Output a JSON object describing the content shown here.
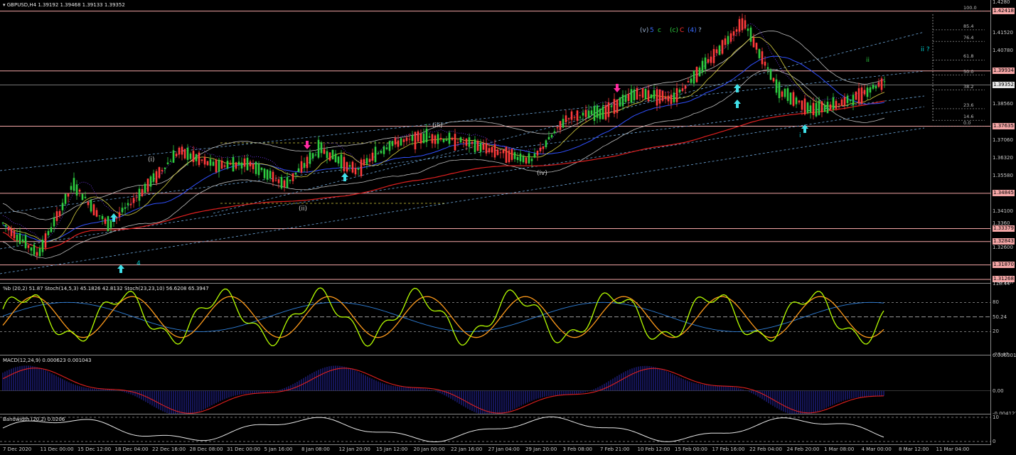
{
  "main_header": "GBPUSD,H4  1.39192 1.39468 1.39133 1.39352",
  "stoch_header": "%b (20,2) 51.87  Stoch(14,5,3) 45.1826 42.8132  Stoch(23,23,10) 56.6208 65.3947",
  "macd_header": "MACD(12,24,9) 0.000623 0.001043",
  "bw_header": "Bandwidth (20,2) 0.0206",
  "price_ticks": [
    "1.4280",
    "1.41520",
    "1.40780",
    "1.3939",
    "1.38560",
    "1.3760",
    "1.37060",
    "1.36320",
    "1.35580",
    "1.3480",
    "1.34100",
    "1.3360",
    "1.32600",
    "1.31860",
    "1.31120"
  ],
  "price_tags": [
    {
      "label": "1.42418",
      "price": 1.42418,
      "kind": "level"
    },
    {
      "label": "1.39934",
      "price": 1.39934,
      "kind": "level"
    },
    {
      "label": "1.39352",
      "price": 1.39352,
      "kind": "current"
    },
    {
      "label": "1.37635",
      "price": 1.37635,
      "kind": "level"
    },
    {
      "label": "1.34845",
      "price": 1.34845,
      "kind": "level"
    },
    {
      "label": "1.33379",
      "price": 1.33379,
      "kind": "level"
    },
    {
      "label": "1.32843",
      "price": 1.32843,
      "kind": "level"
    },
    {
      "label": "1.31870",
      "price": 1.3187,
      "kind": "level"
    },
    {
      "label": "1.31268",
      "price": 1.31268,
      "kind": "level"
    }
  ],
  "stoch_ticks": [
    "118.44",
    "80",
    "50.24",
    "20",
    "-27.47"
  ],
  "macd_ticks": [
    "0.006301",
    "0.00",
    "-0.004121"
  ],
  "bw_ticks": [
    "10",
    "0"
  ],
  "time_labels": [
    "7 Dec 2020",
    "11 Dec 00:00",
    "15 Dec 12:00",
    "18 Dec 04:00",
    "22 Dec 16:00",
    "28 Dec 08:00",
    "31 Dec 00:00",
    "5 Jan 16:00",
    "8 Jan 08:00",
    "12 Jan 20:00",
    "15 Jan 12:00",
    "20 Jan 00:00",
    "22 Jan 16:00",
    "27 Jan 04:00",
    "29 Jan 20:00",
    "3 Feb 08:00",
    "7 Feb 21:00",
    "10 Feb 12:00",
    "15 Feb 00:00",
    "17 Feb 16:00",
    "22 Feb 04:00",
    "24 Feb 20:00",
    "1 Mar 08:00",
    "4 Mar 00:00",
    "8 Mar 12:00",
    "11 Mar 04:00"
  ],
  "fib_levels": [
    {
      "label": "100.0",
      "price": 1.42418
    },
    {
      "label": "85.4",
      "price": 1.4164
    },
    {
      "label": "76.4",
      "price": 1.4116
    },
    {
      "label": "61.8",
      "price": 1.4039
    },
    {
      "label": "50.0",
      "price": 1.3976
    },
    {
      "label": "38.2",
      "price": 1.3914
    },
    {
      "label": "23.6",
      "price": 1.3836
    },
    {
      "label": "14.6",
      "price": 1.3788
    },
    {
      "label": "0.0",
      "price": 1.37635
    }
  ],
  "wave_labels": [
    {
      "text": "(v)",
      "color": "#9ab0d0"
    },
    {
      "text": "5",
      "color": "#3a6cff"
    },
    {
      "text": "c",
      "color": "#2ecc40"
    },
    {
      "text": "(c)",
      "color": "#2ecc40"
    },
    {
      "text": "C",
      "color": "#ff3030"
    },
    {
      "text": "(4)",
      "color": "#3a6cff"
    },
    {
      "text": "?",
      "color": "#9ab0d0"
    },
    {
      "text": "ii ?",
      "color": "#00c8c8"
    },
    {
      "text": "ii",
      "color": "#2ecc40"
    },
    {
      "text": "i",
      "color": "#00c8c8"
    },
    {
      "text": "(iii)",
      "color": "#c8c8c8"
    },
    {
      "text": "(iv)",
      "color": "#c8c8c8"
    },
    {
      "text": "(ii)",
      "color": "#c8c8c8"
    },
    {
      "text": "(i)",
      "color": "#c8c8c8"
    },
    {
      "text": "4",
      "color": "#00c8c8"
    }
  ],
  "chart_data": {
    "type": "line",
    "symbol": "GBPUSD",
    "timeframe": "H4",
    "ohlc_last": {
      "open": 1.39192,
      "high": 1.39468,
      "low": 1.39133,
      "close": 1.39352
    },
    "ylim": [
      1.3112,
      1.4288
    ],
    "x": [
      "7 Dec 2020",
      "11 Dec 00:00",
      "15 Dec 12:00",
      "18 Dec 04:00",
      "22 Dec 16:00",
      "28 Dec 08:00",
      "31 Dec 00:00",
      "5 Jan 16:00",
      "8 Jan 08:00",
      "12 Jan 20:00",
      "15 Jan 12:00",
      "20 Jan 00:00",
      "22 Jan 16:00",
      "27 Jan 04:00",
      "29 Jan 20:00",
      "3 Feb 08:00",
      "7 Feb 21:00",
      "10 Feb 12:00",
      "15 Feb 00:00",
      "17 Feb 16:00",
      "22 Feb 04:00",
      "24 Feb 20:00",
      "1 Mar 08:00",
      "4 Mar 00:00",
      "8 Mar 12:00",
      "11 Mar 04:00"
    ],
    "series": [
      {
        "values": [
          1.336,
          1.323,
          1.352,
          1.335,
          1.35,
          1.366,
          1.36,
          1.361,
          1.352,
          1.367,
          1.358,
          1.369,
          1.372,
          1.37,
          1.366,
          1.362,
          1.38,
          1.382,
          1.39,
          1.388,
          1.403,
          1.42,
          1.391,
          1.383,
          1.387,
          1.395
        ]
      }
    ],
    "horizontal_levels": [
      1.42418,
      1.39934,
      1.37635,
      1.34845,
      1.33379,
      1.32843,
      1.3187,
      1.31268
    ],
    "current_price": 1.39352,
    "indicators": {
      "percent_b": {
        "period": 20,
        "dev": 2,
        "last": 51.87
      },
      "stoch_14_5_3": {
        "k": 45.1826,
        "d": 42.8132
      },
      "stoch_23_23_10": {
        "k": 56.6208,
        "d": 65.3947
      },
      "macd": {
        "params": [
          12,
          24,
          9
        ],
        "main": 0.000623,
        "signal": 0.001043
      },
      "bandwidth": {
        "period": 20,
        "dev": 2,
        "last": 0.0206
      }
    },
    "colors": {
      "bull": "#2ecc40",
      "bear": "#ff3b3b",
      "ma_red": "#e02020",
      "ma_blue": "#3050ff",
      "ma_yellow": "#d8d040",
      "bands": "#bdbdbd",
      "channel": "#6fa8dc",
      "level": "#f4a6a6",
      "stoch_fast": "#b6ff00",
      "stoch_slow": "#ff9a1a",
      "macd_hist": "#2a2ab0",
      "macd_signal": "#e02020"
    }
  }
}
